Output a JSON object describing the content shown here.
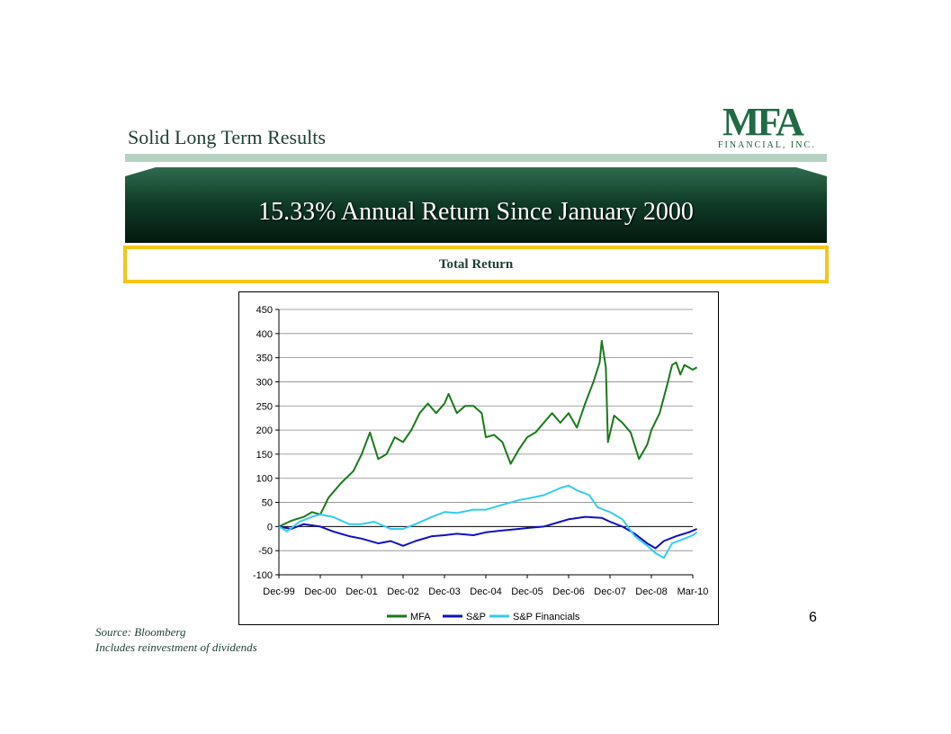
{
  "header": {
    "title": "Solid Long Term Results",
    "logo_text": "MFA",
    "logo_subtext": "FINANCIAL, INC."
  },
  "banner": {
    "text": "15.33% Annual Return Since January 2000"
  },
  "subheading": "Total Return",
  "page_number": "6",
  "footnotes": {
    "source": "Source:  Bloomberg",
    "note": "Includes reinvestment of dividends"
  },
  "colors": {
    "brand_green": "#1f6b45",
    "banner_dark": "#0f3a26",
    "accent_yellow": "#f5c518"
  },
  "chart_data": {
    "type": "line",
    "title": "",
    "xlabel": "",
    "ylabel": "",
    "ylim": [
      -100,
      450
    ],
    "yticks": [
      "-100",
      "-50",
      "0",
      "50",
      "100",
      "150",
      "200",
      "250",
      "300",
      "350",
      "400",
      "450"
    ],
    "xticks": [
      "Dec-99",
      "Dec-00",
      "Dec-01",
      "Dec-02",
      "Dec-03",
      "Dec-04",
      "Dec-05",
      "Dec-06",
      "Dec-07",
      "Dec-08",
      "Mar-10"
    ],
    "grid": true,
    "legend": "bottom",
    "series": [
      {
        "name": "MFA",
        "color": "#1a7a1a",
        "points": [
          [
            0,
            0
          ],
          [
            0.3,
            12
          ],
          [
            0.6,
            20
          ],
          [
            0.8,
            30
          ],
          [
            1.0,
            25
          ],
          [
            1.2,
            60
          ],
          [
            1.5,
            90
          ],
          [
            1.8,
            115
          ],
          [
            2.0,
            150
          ],
          [
            2.2,
            195
          ],
          [
            2.4,
            140
          ],
          [
            2.6,
            150
          ],
          [
            2.8,
            185
          ],
          [
            3.0,
            175
          ],
          [
            3.2,
            200
          ],
          [
            3.4,
            235
          ],
          [
            3.6,
            255
          ],
          [
            3.8,
            235
          ],
          [
            4.0,
            255
          ],
          [
            4.1,
            275
          ],
          [
            4.3,
            235
          ],
          [
            4.5,
            250
          ],
          [
            4.7,
            250
          ],
          [
            4.9,
            235
          ],
          [
            5.0,
            185
          ],
          [
            5.2,
            190
          ],
          [
            5.4,
            175
          ],
          [
            5.6,
            130
          ],
          [
            5.8,
            160
          ],
          [
            6.0,
            185
          ],
          [
            6.2,
            195
          ],
          [
            6.4,
            215
          ],
          [
            6.6,
            235
          ],
          [
            6.8,
            215
          ],
          [
            7.0,
            235
          ],
          [
            7.2,
            205
          ],
          [
            7.4,
            255
          ],
          [
            7.6,
            300
          ],
          [
            7.75,
            340
          ],
          [
            7.8,
            385
          ],
          [
            7.9,
            330
          ],
          [
            7.95,
            175
          ],
          [
            8.1,
            230
          ],
          [
            8.3,
            215
          ],
          [
            8.5,
            195
          ],
          [
            8.7,
            140
          ],
          [
            8.9,
            170
          ],
          [
            9.0,
            200
          ],
          [
            9.2,
            235
          ],
          [
            9.4,
            300
          ],
          [
            9.5,
            335
          ],
          [
            9.6,
            340
          ],
          [
            9.7,
            315
          ],
          [
            9.8,
            335
          ],
          [
            10.0,
            325
          ],
          [
            10.1,
            330
          ]
        ]
      },
      {
        "name": "S&P",
        "color": "#1010c0",
        "points": [
          [
            0,
            0
          ],
          [
            0.3,
            -5
          ],
          [
            0.6,
            5
          ],
          [
            1.0,
            0
          ],
          [
            1.3,
            -10
          ],
          [
            1.7,
            -20
          ],
          [
            2.0,
            -25
          ],
          [
            2.4,
            -35
          ],
          [
            2.7,
            -30
          ],
          [
            3.0,
            -40
          ],
          [
            3.3,
            -30
          ],
          [
            3.7,
            -20
          ],
          [
            4.0,
            -18
          ],
          [
            4.3,
            -15
          ],
          [
            4.7,
            -18
          ],
          [
            5.0,
            -12
          ],
          [
            5.4,
            -8
          ],
          [
            5.8,
            -5
          ],
          [
            6.0,
            -3
          ],
          [
            6.4,
            0
          ],
          [
            6.8,
            10
          ],
          [
            7.0,
            15
          ],
          [
            7.4,
            20
          ],
          [
            7.8,
            18
          ],
          [
            8.0,
            10
          ],
          [
            8.3,
            0
          ],
          [
            8.6,
            -15
          ],
          [
            8.9,
            -35
          ],
          [
            9.1,
            -45
          ],
          [
            9.3,
            -30
          ],
          [
            9.6,
            -20
          ],
          [
            9.9,
            -12
          ],
          [
            10.1,
            -5
          ]
        ]
      },
      {
        "name": "S&P Financials",
        "color": "#33ccee",
        "points": [
          [
            0,
            0
          ],
          [
            0.2,
            -10
          ],
          [
            0.5,
            10
          ],
          [
            0.8,
            20
          ],
          [
            1.0,
            25
          ],
          [
            1.3,
            20
          ],
          [
            1.7,
            5
          ],
          [
            2.0,
            5
          ],
          [
            2.3,
            10
          ],
          [
            2.7,
            -5
          ],
          [
            3.0,
            -5
          ],
          [
            3.3,
            5
          ],
          [
            3.7,
            20
          ],
          [
            4.0,
            30
          ],
          [
            4.3,
            28
          ],
          [
            4.7,
            35
          ],
          [
            5.0,
            35
          ],
          [
            5.4,
            45
          ],
          [
            5.8,
            55
          ],
          [
            6.0,
            58
          ],
          [
            6.4,
            65
          ],
          [
            6.8,
            80
          ],
          [
            7.0,
            85
          ],
          [
            7.2,
            75
          ],
          [
            7.5,
            65
          ],
          [
            7.7,
            40
          ],
          [
            8.0,
            30
          ],
          [
            8.3,
            15
          ],
          [
            8.6,
            -20
          ],
          [
            8.9,
            -40
          ],
          [
            9.1,
            -55
          ],
          [
            9.3,
            -65
          ],
          [
            9.5,
            -35
          ],
          [
            9.8,
            -25
          ],
          [
            10.0,
            -18
          ],
          [
            10.1,
            -12
          ]
        ]
      }
    ]
  }
}
